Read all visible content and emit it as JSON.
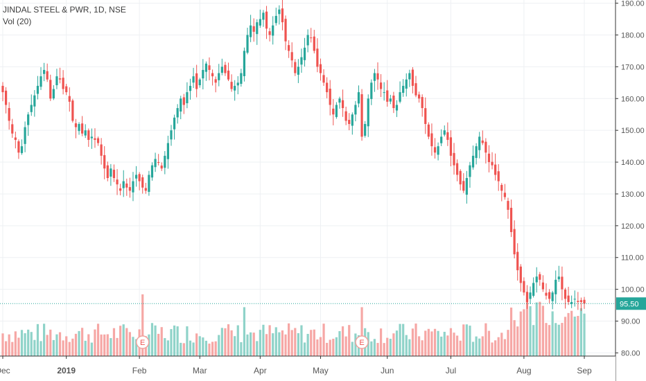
{
  "legend": {
    "title": "JINDAL STEEL & PWR, 1D, NSE",
    "volume": "Vol (20)"
  },
  "last_price_label": "95.50",
  "event_marker": "E",
  "colors": {
    "up": "#26a69a",
    "down": "#ef5350",
    "up_vol": "#8fd3c9",
    "down_vol": "#f6a7a5",
    "grid": "#eef0f3",
    "price_tag": "#26a69a"
  },
  "chart_data": {
    "type": "candlestick",
    "title": "JINDAL STEEL & PWR, 1D, NSE",
    "y_ticks": [
      190,
      180,
      170,
      160,
      150,
      140,
      130,
      120,
      110,
      100,
      90,
      80
    ],
    "y_tick_labels": [
      "190.00",
      "180.00",
      "170.00",
      "160.00",
      "150.00",
      "140.00",
      "130.00",
      "120.00",
      "110.00",
      "100.00",
      "90.00",
      "80.00"
    ],
    "ylim": [
      79,
      191
    ],
    "x_ticks": [
      {
        "label": "Dec",
        "index": 0,
        "bold": false
      },
      {
        "label": "2019",
        "index": 20,
        "bold": true
      },
      {
        "label": "Feb",
        "index": 43,
        "bold": false
      },
      {
        "label": "Mar",
        "index": 62,
        "bold": false
      },
      {
        "label": "Apr",
        "index": 81,
        "bold": false
      },
      {
        "label": "May",
        "index": 100,
        "bold": false
      },
      {
        "label": "Jun",
        "index": 121,
        "bold": false
      },
      {
        "label": "Jul",
        "index": 141,
        "bold": false
      },
      {
        "label": "Aug",
        "index": 164,
        "bold": false
      },
      {
        "label": "Sep",
        "index": 183,
        "bold": false
      }
    ],
    "last_price": 95.5,
    "earnings_events": [
      44,
      113
    ],
    "close": [
      162,
      158,
      153,
      149,
      147,
      143,
      145,
      151,
      155,
      158,
      161,
      164,
      167,
      169,
      166,
      160,
      163,
      167,
      166,
      163,
      162,
      159,
      153,
      151,
      152,
      149,
      150,
      147,
      148,
      147,
      146,
      142,
      138,
      135,
      138,
      135,
      133,
      131,
      134,
      132,
      131,
      134,
      136,
      134,
      132,
      131,
      136,
      139,
      141,
      140,
      138,
      142,
      146,
      150,
      154,
      157,
      160,
      158,
      162,
      164,
      167,
      163,
      166,
      169,
      171,
      169,
      167,
      165,
      168,
      170,
      168,
      166,
      163,
      164,
      165,
      168,
      175,
      180,
      183,
      181,
      184,
      185,
      187,
      182,
      180,
      183,
      186,
      188,
      184,
      178,
      175,
      172,
      168,
      170,
      173,
      176,
      180,
      179,
      175,
      170,
      168,
      165,
      162,
      158,
      155,
      158,
      160,
      157,
      153,
      152,
      155,
      158,
      162,
      148,
      152,
      160,
      165,
      168,
      166,
      163,
      162,
      159,
      160,
      157,
      158,
      162,
      164,
      166,
      168,
      164,
      161,
      160,
      157,
      152,
      148,
      145,
      143,
      145,
      148,
      150,
      147,
      142,
      139,
      136,
      133,
      131,
      135,
      139,
      142,
      145,
      148,
      146,
      143,
      140,
      139,
      136,
      134,
      131,
      129,
      125,
      118,
      111,
      106,
      102,
      99,
      96,
      99,
      102,
      104,
      103,
      100,
      98,
      97,
      99,
      103,
      104,
      100,
      97,
      96,
      96,
      97,
      96,
      96,
      95.5
    ]
  }
}
